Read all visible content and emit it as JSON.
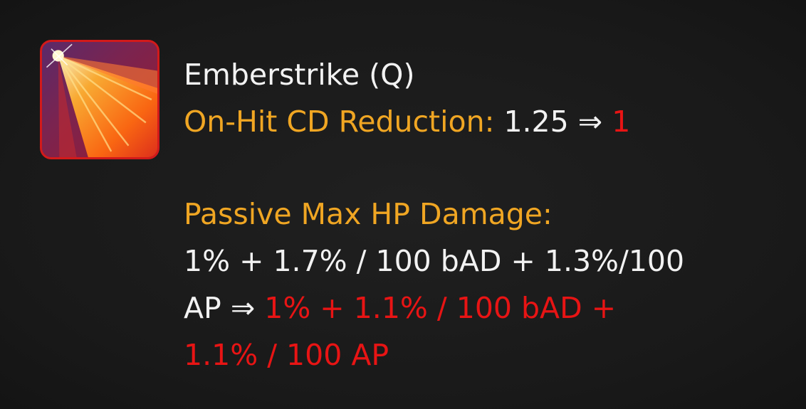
{
  "ability": {
    "icon": "emberstrike-ability-icon",
    "title": "Emberstrike (Q)",
    "stat1": {
      "label": "On-Hit CD Reduction:",
      "old": "1.25",
      "arrow": "⇒",
      "new": "1"
    },
    "stat2": {
      "label": "Passive Max HP Damage:",
      "old_line1": "1% + 1.7% / 100 bAD + 1.3%/100",
      "old_line2": "AP",
      "arrow": "⇒",
      "new_line1": "1% + 1.1% / 100 bAD +",
      "new_line2": "1.1% / 100 AP"
    }
  },
  "colors": {
    "label": "#f0a623",
    "new_value": "#e81414",
    "text": "#f2f2f2",
    "background": "#1c1c1c",
    "icon_border": "#d21a1a"
  }
}
